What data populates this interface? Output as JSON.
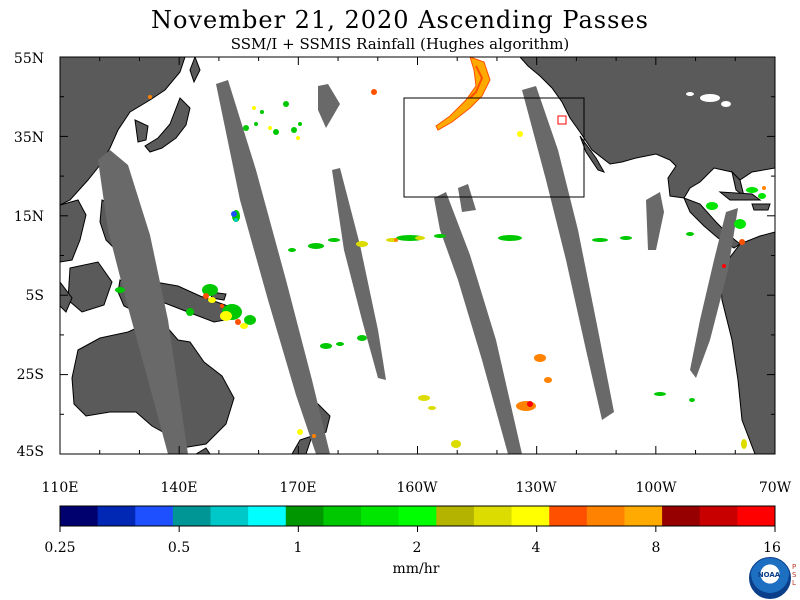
{
  "title": "November 21, 2020  Ascending Passes",
  "subtitle": "SSM/I + SSMIS Rainfall (Hughes algorithm)",
  "latitude_labels": [
    "55N",
    "35N",
    "15N",
    "5S",
    "25S",
    "45S"
  ],
  "longitude_labels": [
    "110E",
    "140E",
    "170E",
    "160W",
    "130W",
    "100W",
    "70W"
  ],
  "colorbar": {
    "colors": [
      "#00006e",
      "#0028b4",
      "#1e50ff",
      "#009696",
      "#00c8c8",
      "#00ffff",
      "#009600",
      "#00c800",
      "#00e600",
      "#00ff00",
      "#b4b400",
      "#dcdc00",
      "#ffff00",
      "#ff5000",
      "#ff8200",
      "#ffaa00",
      "#960000",
      "#c80000",
      "#ff0000"
    ],
    "tick_labels": [
      "0.25",
      "0.5",
      "1",
      "2",
      "4",
      "8",
      "16"
    ],
    "units": "mm/hr"
  },
  "map": {
    "land_color": "#5a5a5a",
    "ocean_color": "#ffffff",
    "missing_swath_color": "#696969"
  },
  "logo": {
    "name": "noaa-logo",
    "text": "NOAA",
    "side_text": "PSL"
  }
}
